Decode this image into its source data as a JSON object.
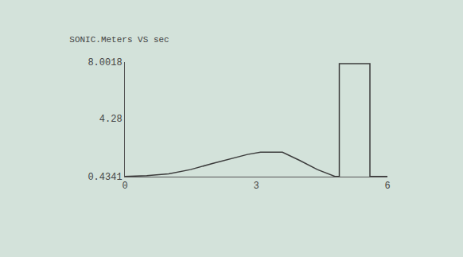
{
  "chart_data": {
    "type": "line",
    "title": "SONIC.Meters VS sec",
    "x": [
      0,
      0.5,
      1,
      1.5,
      2,
      2.5,
      2.8,
      3.1,
      3.6,
      4,
      4.4,
      4.8,
      4.9,
      4.9,
      5.6,
      5.6,
      6
    ],
    "values": [
      0.45,
      0.5,
      0.62,
      0.9,
      1.3,
      1.7,
      1.9,
      2.05,
      2.05,
      1.5,
      0.9,
      0.45,
      0.45,
      7.9,
      7.9,
      0.45,
      0.45
    ],
    "color": "#3c3c3c",
    "xlim": [
      0,
      6
    ],
    "xticks": [
      0,
      3,
      6
    ],
    "ylim": [
      0.4341,
      8.0018
    ],
    "yticks": [
      0.4341,
      4.28,
      8.0018
    ],
    "grid": false
  }
}
